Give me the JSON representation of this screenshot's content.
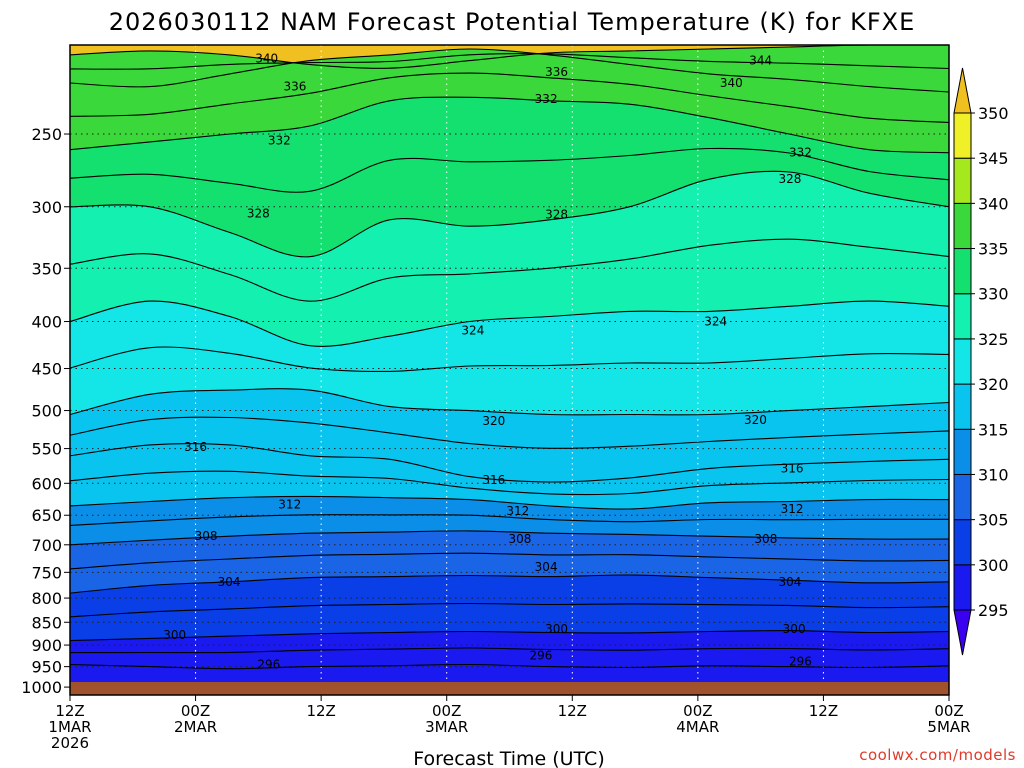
{
  "chart_data": {
    "type": "heatmap",
    "title": "2026030112 NAM Forecast Potential Temperature (K) for KFXE",
    "xlabel": "Forecast Time (UTC)",
    "ylabel": "",
    "credit": "coolwx.com/models",
    "x_ticks": [
      {
        "hour": 0,
        "lines": [
          "12Z",
          "1MAR",
          "2026"
        ]
      },
      {
        "hour": 12,
        "lines": [
          "00Z",
          "2MAR"
        ]
      },
      {
        "hour": 24,
        "lines": [
          "12Z"
        ]
      },
      {
        "hour": 36,
        "lines": [
          "00Z",
          "3MAR"
        ]
      },
      {
        "hour": 48,
        "lines": [
          "12Z"
        ]
      },
      {
        "hour": 60,
        "lines": [
          "00Z",
          "4MAR"
        ]
      },
      {
        "hour": 72,
        "lines": [
          "12Z"
        ]
      },
      {
        "hour": 84,
        "lines": [
          "00Z",
          "5MAR"
        ]
      }
    ],
    "xlim": [
      0,
      84
    ],
    "y_ticks": [
      "250",
      "300",
      "350",
      "400",
      "450",
      "500",
      "550",
      "600",
      "650",
      "700",
      "750",
      "800",
      "850",
      "900",
      "950",
      "1000"
    ],
    "ylim_hpa": [
      1020,
      200
    ],
    "colorbar_levels": [
      295,
      300,
      305,
      310,
      315,
      320,
      325,
      330,
      335,
      340,
      345,
      350
    ],
    "color_bands": [
      {
        "min": 290,
        "max": 295,
        "color": "#3a00f0"
      },
      {
        "min": 295,
        "max": 300,
        "color": "#1a1af0"
      },
      {
        "min": 300,
        "max": 305,
        "color": "#0a3ee6"
      },
      {
        "min": 305,
        "max": 310,
        "color": "#1a64e6"
      },
      {
        "min": 310,
        "max": 315,
        "color": "#0a8ee8"
      },
      {
        "min": 315,
        "max": 320,
        "color": "#0ac4f0"
      },
      {
        "min": 320,
        "max": 325,
        "color": "#14e6e8"
      },
      {
        "min": 325,
        "max": 330,
        "color": "#14f0b0"
      },
      {
        "min": 330,
        "max": 335,
        "color": "#14e070"
      },
      {
        "min": 335,
        "max": 340,
        "color": "#3ad83a"
      },
      {
        "min": 340,
        "max": 345,
        "color": "#a6e81e"
      },
      {
        "min": 345,
        "max": 350,
        "color": "#f0f028"
      },
      {
        "min": 350,
        "max": 355,
        "color": "#f0c020"
      }
    ],
    "ground_color": "#a0522d",
    "contours": [
      {
        "value": 296,
        "profile_hpa": [
          945,
          950,
          955,
          950,
          948,
          945,
          950,
          952,
          948,
          950,
          952,
          948
        ]
      },
      {
        "value": 300,
        "profile_hpa": [
          890,
          885,
          880,
          875,
          872,
          870,
          872,
          873,
          870,
          868,
          872,
          870
        ]
      },
      {
        "value": 304,
        "profile_hpa": [
          790,
          775,
          768,
          760,
          758,
          756,
          758,
          755,
          760,
          765,
          770,
          768
        ]
      },
      {
        "value": 308,
        "profile_hpa": [
          700,
          692,
          685,
          680,
          678,
          676,
          680,
          682,
          685,
          688,
          690,
          690
        ]
      },
      {
        "value": 312,
        "profile_hpa": [
          635,
          628,
          622,
          620,
          622,
          625,
          635,
          640,
          630,
          628,
          625,
          625
        ]
      },
      {
        "value": 316,
        "profile_hpa": [
          560,
          545,
          545,
          560,
          565,
          590,
          598,
          592,
          578,
          572,
          568,
          565
        ]
      },
      {
        "value": 320,
        "profile_hpa": [
          505,
          480,
          475,
          475,
          495,
          500,
          505,
          505,
          505,
          500,
          495,
          490
        ]
      },
      {
        "value": 324,
        "profile_hpa": [
          400,
          380,
          395,
          425,
          415,
          400,
          395,
          390,
          390,
          385,
          380,
          385
        ]
      },
      {
        "value": 328,
        "profile_hpa": [
          300,
          300,
          320,
          340,
          310,
          315,
          310,
          300,
          280,
          275,
          290,
          300
        ]
      },
      {
        "value": 332,
        "profile_hpa": [
          260,
          255,
          250,
          245,
          230,
          228,
          230,
          232,
          240,
          250,
          260,
          262
        ]
      },
      {
        "value": 336,
        "profile_hpa": [
          220,
          222,
          215,
          208,
          205,
          202,
          205,
          210,
          215,
          218,
          222,
          225
        ]
      },
      {
        "value": 340,
        "profile_hpa": [
          205,
          203,
          205,
          210,
          212,
          208,
          204,
          203,
          202,
          201,
          200,
          200
        ]
      }
    ],
    "contour_labels": [
      {
        "value": "340",
        "hour": 18.8,
        "hpa": 207
      },
      {
        "value": "344",
        "hour": 66,
        "hpa": 208
      },
      {
        "value": "336",
        "hour": 21.5,
        "hpa": 222
      },
      {
        "value": "336",
        "hour": 46.5,
        "hpa": 214
      },
      {
        "value": "340",
        "hour": 63.2,
        "hpa": 220
      },
      {
        "value": "332",
        "hour": 45.5,
        "hpa": 229
      },
      {
        "value": "332",
        "hour": 20,
        "hpa": 254
      },
      {
        "value": "332",
        "hour": 69.8,
        "hpa": 262
      },
      {
        "value": "328",
        "hour": 18,
        "hpa": 305
      },
      {
        "value": "328",
        "hour": 46.5,
        "hpa": 306
      },
      {
        "value": "328",
        "hour": 68.8,
        "hpa": 280
      },
      {
        "value": "324",
        "hour": 38.5,
        "hpa": 409
      },
      {
        "value": "324",
        "hour": 61.7,
        "hpa": 400
      },
      {
        "value": "320",
        "hour": 40.5,
        "hpa": 513
      },
      {
        "value": "320",
        "hour": 65.5,
        "hpa": 512
      },
      {
        "value": "316",
        "hour": 12,
        "hpa": 548
      },
      {
        "value": "316",
        "hour": 40.5,
        "hpa": 595
      },
      {
        "value": "316",
        "hour": 69,
        "hpa": 578
      },
      {
        "value": "312",
        "hour": 21,
        "hpa": 633
      },
      {
        "value": "312",
        "hour": 42.8,
        "hpa": 643
      },
      {
        "value": "312",
        "hour": 69,
        "hpa": 640
      },
      {
        "value": "308",
        "hour": 13,
        "hpa": 685
      },
      {
        "value": "308",
        "hour": 43,
        "hpa": 690
      },
      {
        "value": "308",
        "hour": 66.5,
        "hpa": 690
      },
      {
        "value": "304",
        "hour": 15.2,
        "hpa": 768
      },
      {
        "value": "304",
        "hour": 45.5,
        "hpa": 740
      },
      {
        "value": "304",
        "hour": 68.8,
        "hpa": 768
      },
      {
        "value": "300",
        "hour": 10,
        "hpa": 878
      },
      {
        "value": "300",
        "hour": 46.5,
        "hpa": 865
      },
      {
        "value": "300",
        "hour": 69.2,
        "hpa": 865
      },
      {
        "value": "296",
        "hour": 19,
        "hpa": 945
      },
      {
        "value": "296",
        "hour": 45,
        "hpa": 924
      },
      {
        "value": "296",
        "hour": 69.8,
        "hpa": 938
      }
    ]
  }
}
